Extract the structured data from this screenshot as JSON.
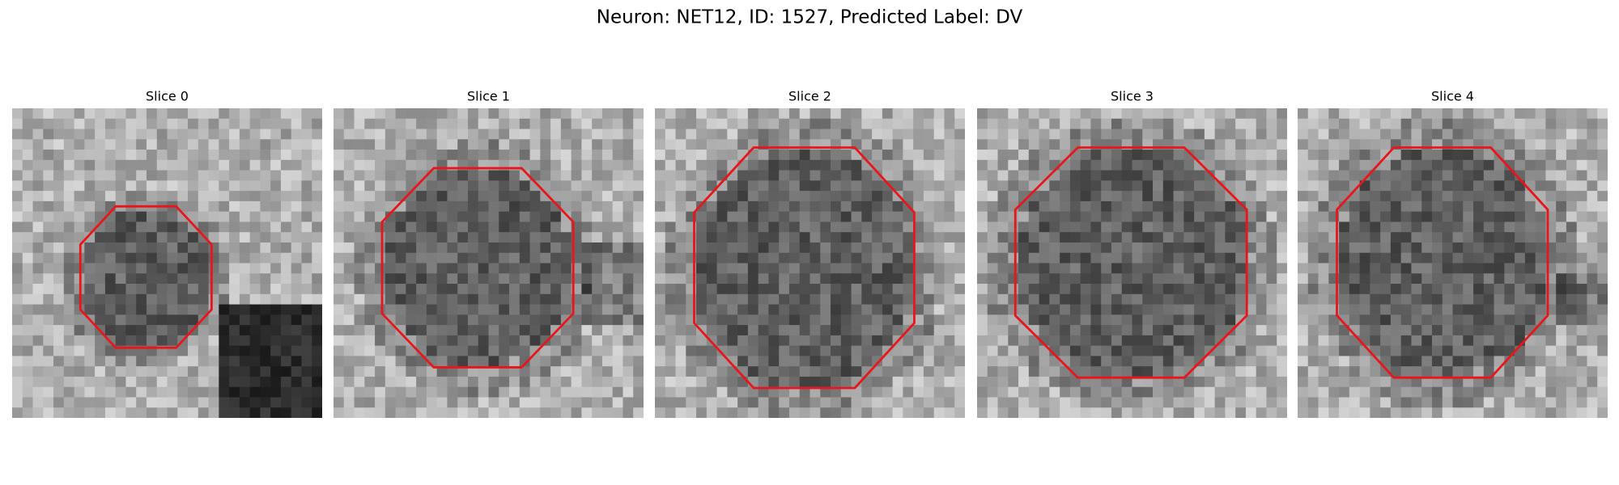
{
  "title": "Neuron: NET12, ID: 1527, Predicted Label: DV",
  "panels": [
    {
      "title": "Slice 0"
    },
    {
      "title": "Slice 1"
    },
    {
      "title": "Slice 2"
    },
    {
      "title": "Slice 3"
    },
    {
      "title": "Slice 4"
    }
  ]
}
